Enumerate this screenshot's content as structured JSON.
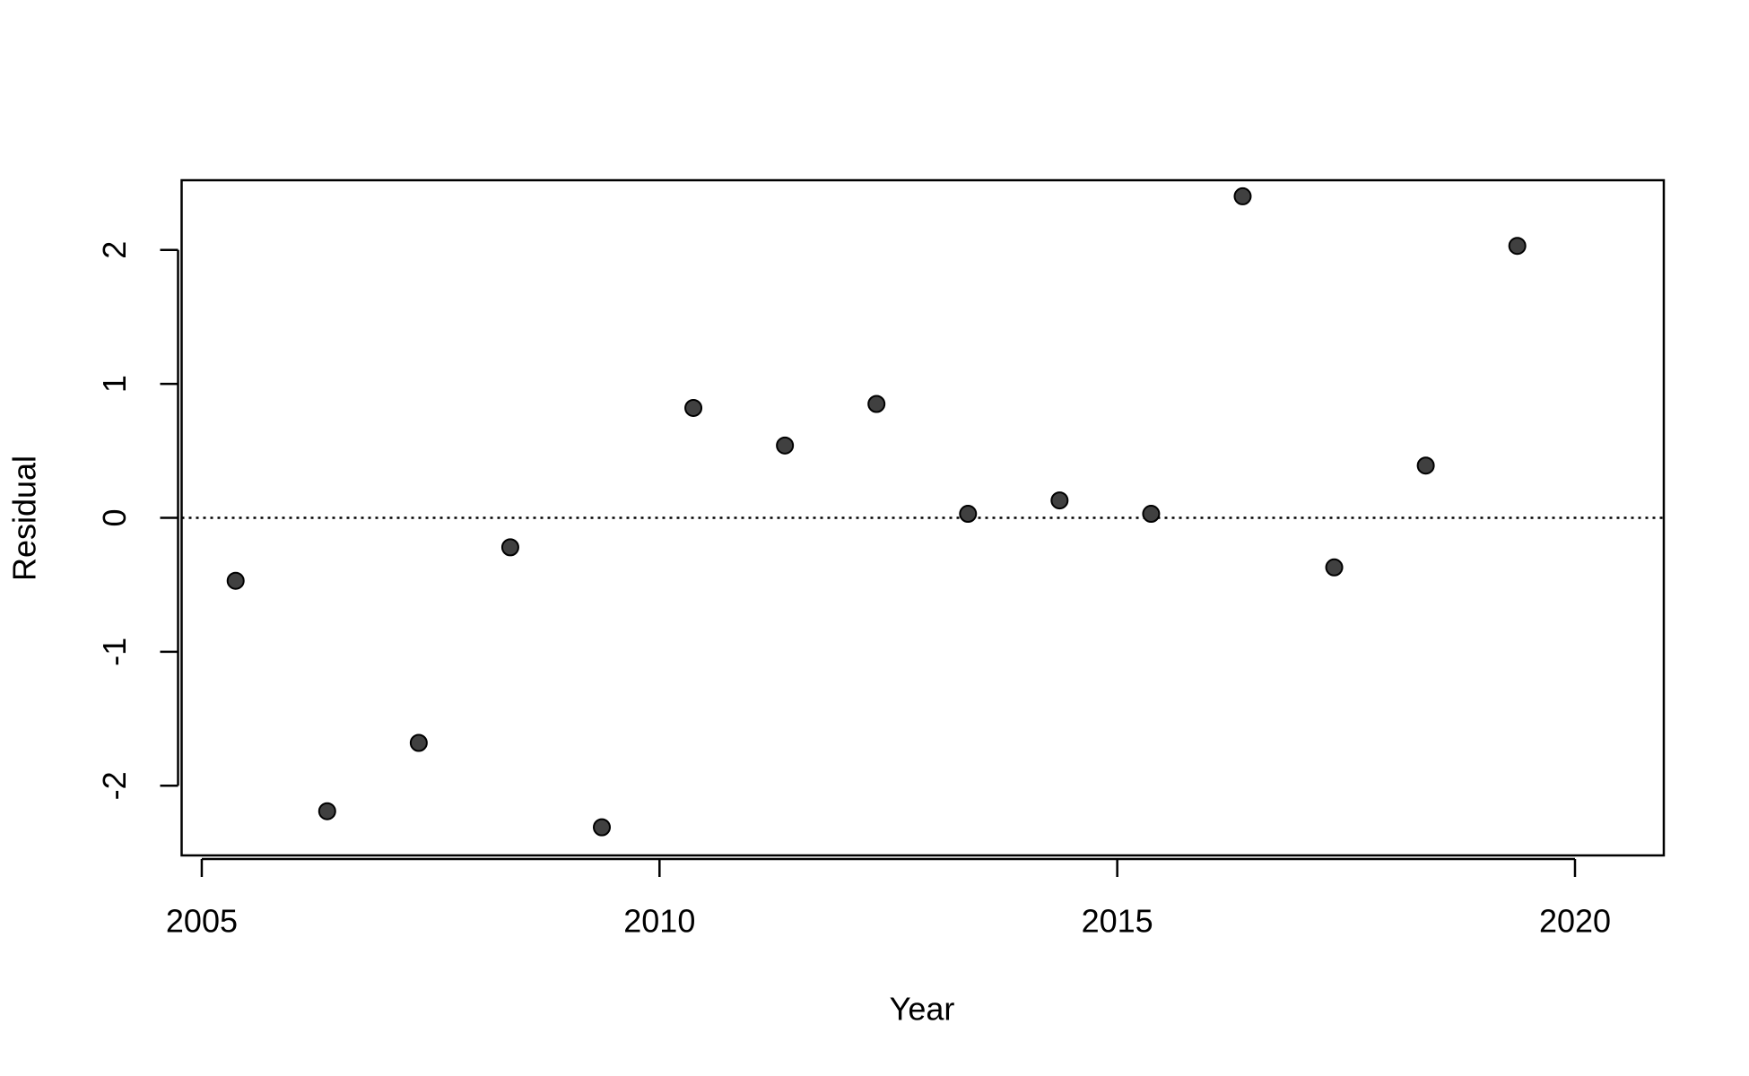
{
  "chart_data": {
    "type": "scatter",
    "x_label": "Year",
    "y_label": "Residual",
    "x": [
      2005.37,
      2006.37,
      2007.37,
      2008.37,
      2009.37,
      2010.37,
      2011.37,
      2012.37,
      2013.37,
      2014.37,
      2015.37,
      2016.37,
      2017.37,
      2018.37,
      2019.37
    ],
    "values": [
      -0.47,
      -2.19,
      -1.68,
      -0.22,
      -2.31,
      0.82,
      0.54,
      0.85,
      0.03,
      0.13,
      0.03,
      2.4,
      -0.37,
      0.39,
      2.03
    ],
    "color": "#404040",
    "xlim": [
      2004.78,
      2020.97
    ],
    "ylim": [
      -2.52,
      2.52
    ],
    "xticks": [
      2005,
      2010,
      2015,
      2020
    ],
    "yticks": [
      -2,
      -1,
      0,
      1,
      2
    ],
    "reference_line": 0
  }
}
